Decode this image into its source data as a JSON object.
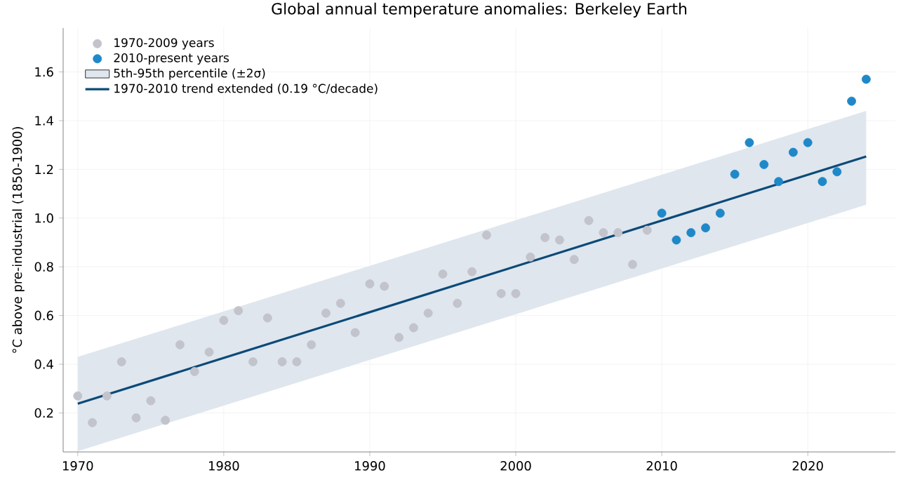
{
  "chart_data": {
    "type": "scatter",
    "title": "Global annual temperature anomalies: Berkeley Earth",
    "ylabel": "°C above pre-industrial (1850-1900)",
    "xlim": [
      1969,
      2026
    ],
    "ylim": [
      0.04,
      1.78
    ],
    "xticks": [
      1970,
      1980,
      1990,
      2000,
      2010,
      2020
    ],
    "yticks": [
      0.2,
      0.4,
      0.6,
      0.8,
      {
        "value": 1.0,
        "label": "1.0"
      },
      1.2,
      1.4,
      1.6
    ],
    "grid": true,
    "legend": "top left",
    "series": [
      {
        "name": "1970-2009 years",
        "marker": "circle",
        "color": "#c2c3cb",
        "x": [
          1970,
          1971,
          1972,
          1973,
          1974,
          1975,
          1976,
          1977,
          1978,
          1979,
          1980,
          1981,
          1982,
          1983,
          1984,
          1985,
          1986,
          1987,
          1988,
          1989,
          1990,
          1991,
          1992,
          1993,
          1994,
          1995,
          1996,
          1997,
          1998,
          1999,
          2000,
          2001,
          2002,
          2003,
          2004,
          2005,
          2006,
          2007,
          2008,
          2009
        ],
        "values": [
          0.27,
          0.16,
          0.27,
          0.41,
          0.18,
          0.25,
          0.17,
          0.48,
          0.37,
          0.45,
          0.58,
          0.62,
          0.41,
          0.59,
          0.41,
          0.41,
          0.48,
          0.61,
          0.65,
          0.53,
          0.73,
          0.72,
          0.51,
          0.55,
          0.61,
          0.77,
          0.65,
          0.78,
          0.93,
          0.69,
          0.69,
          0.84,
          0.92,
          0.91,
          0.83,
          0.99,
          0.94,
          0.94,
          0.81,
          0.95
        ]
      },
      {
        "name": "2010-present years",
        "marker": "circle",
        "color": "#1f88c8",
        "x": [
          2010,
          2011,
          2012,
          2013,
          2014,
          2015,
          2016,
          2017,
          2018,
          2019,
          2020,
          2021,
          2022,
          2023,
          2024
        ],
        "values": [
          1.02,
          0.91,
          0.94,
          0.96,
          1.02,
          1.18,
          1.31,
          1.22,
          1.15,
          1.27,
          1.31,
          1.15,
          1.19,
          1.48,
          1.57
        ]
      },
      {
        "name": "5th-95th percentile (±2σ)",
        "type": "area",
        "color": "#dfe6ee",
        "x": [
          1970,
          2024
        ],
        "values": [
          null,
          null
        ],
        "lower": [
          0.043,
          1.055
        ],
        "upper": [
          0.43,
          1.44
        ]
      },
      {
        "name": "1970-2010 trend extended (0.19 °C/decade)",
        "type": "line",
        "line_style": "solid",
        "color": "#0b4a78",
        "x": [
          1970,
          2024
        ],
        "values": [
          0.238,
          1.253
        ]
      }
    ]
  }
}
